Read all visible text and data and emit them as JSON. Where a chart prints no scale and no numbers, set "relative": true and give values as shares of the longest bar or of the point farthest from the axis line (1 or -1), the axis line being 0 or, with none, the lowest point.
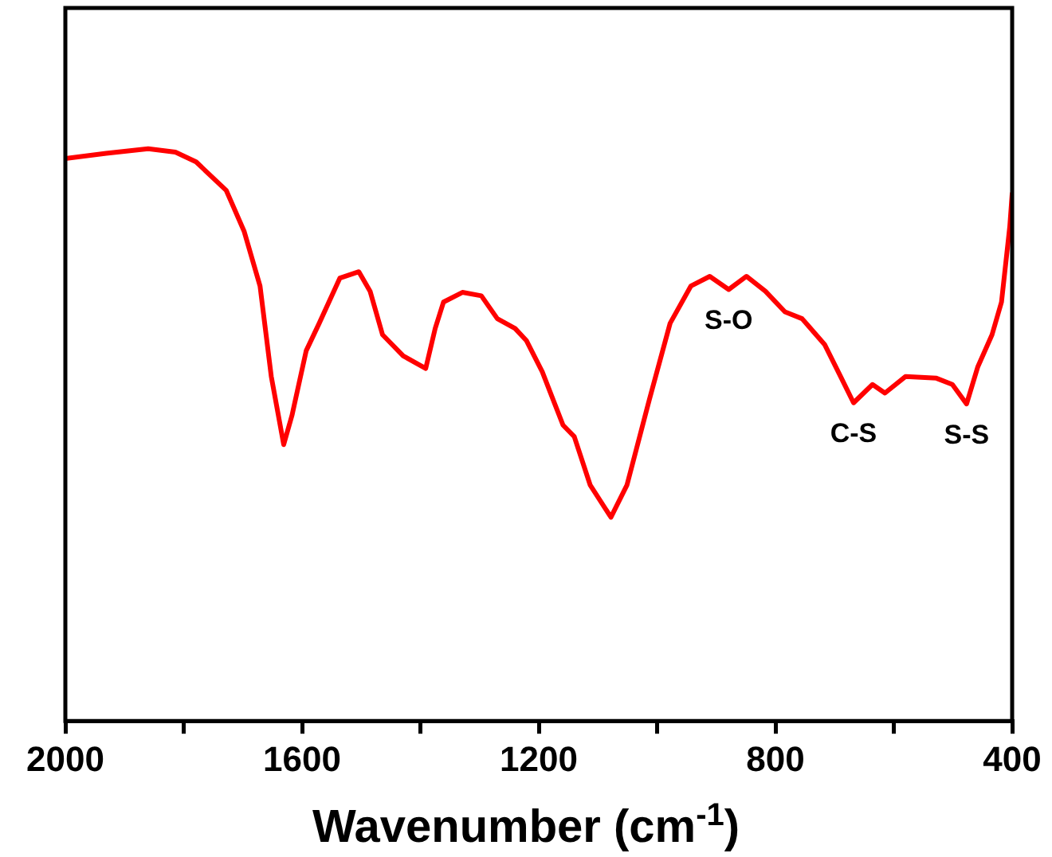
{
  "chart_data": {
    "type": "line",
    "relative": true,
    "xlabel": "Wavenumber (cm$^{-1}$)",
    "xlim": [
      2000,
      400
    ],
    "xticks": [
      2000,
      {
        "value": 1800,
        "label": null
      },
      1600,
      {
        "value": 1400,
        "label": null
      },
      1200,
      {
        "value": 1000,
        "label": null
      },
      800,
      {
        "value": 600,
        "label": null
      },
      400
    ],
    "tick_labels": "x",
    "grid": false,
    "legend": false,
    "marker": "none",
    "line_style": "solid",
    "annotations": [
      {
        "text": "S-O",
        "x": 879,
        "y": 0.754
      },
      {
        "text": "C-S",
        "x": 668,
        "y": 0.556
      },
      {
        "text": "S-S",
        "x": 477,
        "y": 0.554
      }
    ],
    "series": [
      {
        "color": "#ff0000",
        "x": [
          2000,
          1931,
          1860,
          1814,
          1779,
          1728,
          1698,
          1671,
          1652,
          1631,
          1617,
          1593,
          1571,
          1536,
          1504,
          1485,
          1464,
          1429,
          1391,
          1375,
          1361,
          1329,
          1297,
          1270,
          1240,
          1221,
          1194,
          1159,
          1140,
          1113,
          1078,
          1051,
          1013,
          978,
          943,
          911,
          879,
          849,
          817,
          784,
          755,
          717,
          690,
          668,
          636,
          615,
          580,
          528,
          501,
          477,
          458,
          434,
          418,
          404,
          400
        ],
        "values": [
          0.983,
          0.992,
          1,
          0.994,
          0.977,
          0.927,
          0.856,
          0.76,
          0.602,
          0.483,
          0.534,
          0.647,
          0.695,
          0.774,
          0.785,
          0.751,
          0.675,
          0.638,
          0.616,
          0.686,
          0.732,
          0.749,
          0.743,
          0.703,
          0.686,
          0.665,
          0.61,
          0.517,
          0.497,
          0.412,
          0.356,
          0.412,
          0.562,
          0.695,
          0.76,
          0.777,
          0.754,
          0.777,
          0.751,
          0.715,
          0.703,
          0.658,
          0.602,
          0.556,
          0.588,
          0.573,
          0.602,
          0.599,
          0.588,
          0.554,
          0.619,
          0.675,
          0.732,
          0.864,
          0.921
        ]
      }
    ]
  }
}
